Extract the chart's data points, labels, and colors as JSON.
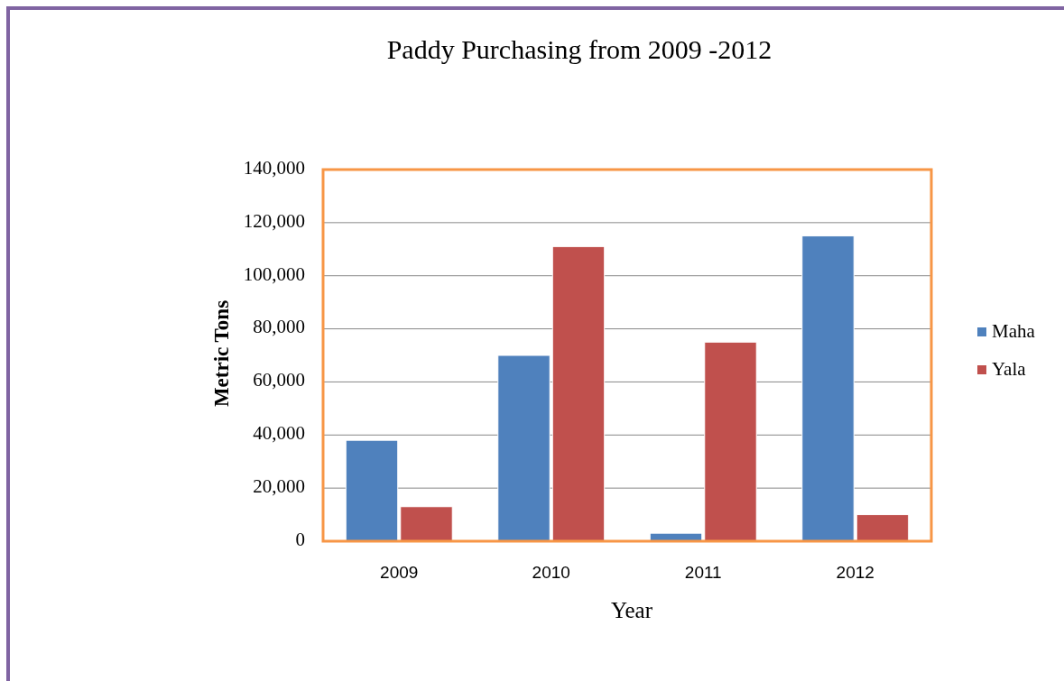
{
  "chart_data": {
    "type": "bar",
    "title": "Paddy Purchasing from 2009 -2012",
    "xlabel": "Year",
    "ylabel": "Metric Tons",
    "categories": [
      "2009",
      "2010",
      "2011",
      "2012"
    ],
    "series": [
      {
        "name": "Maha",
        "color": "#4f81bd",
        "values": [
          38000,
          70000,
          3000,
          115000
        ]
      },
      {
        "name": "Yala",
        "color": "#c0504d",
        "values": [
          13000,
          111000,
          75000,
          10000
        ]
      }
    ],
    "ylim": [
      0,
      140000
    ],
    "yticks": [
      {
        "value": 0,
        "label": "0"
      },
      {
        "value": 20000,
        "label": "20,000"
      },
      {
        "value": 40000,
        "label": "40,000"
      },
      {
        "value": 60000,
        "label": "60,000"
      },
      {
        "value": 80000,
        "label": "80,000"
      },
      {
        "value": 100000,
        "label": "100,000"
      },
      {
        "value": 120000,
        "label": "120,000"
      },
      {
        "value": 140000,
        "label": "140,000"
      }
    ],
    "grid": "y",
    "legend": "right"
  }
}
